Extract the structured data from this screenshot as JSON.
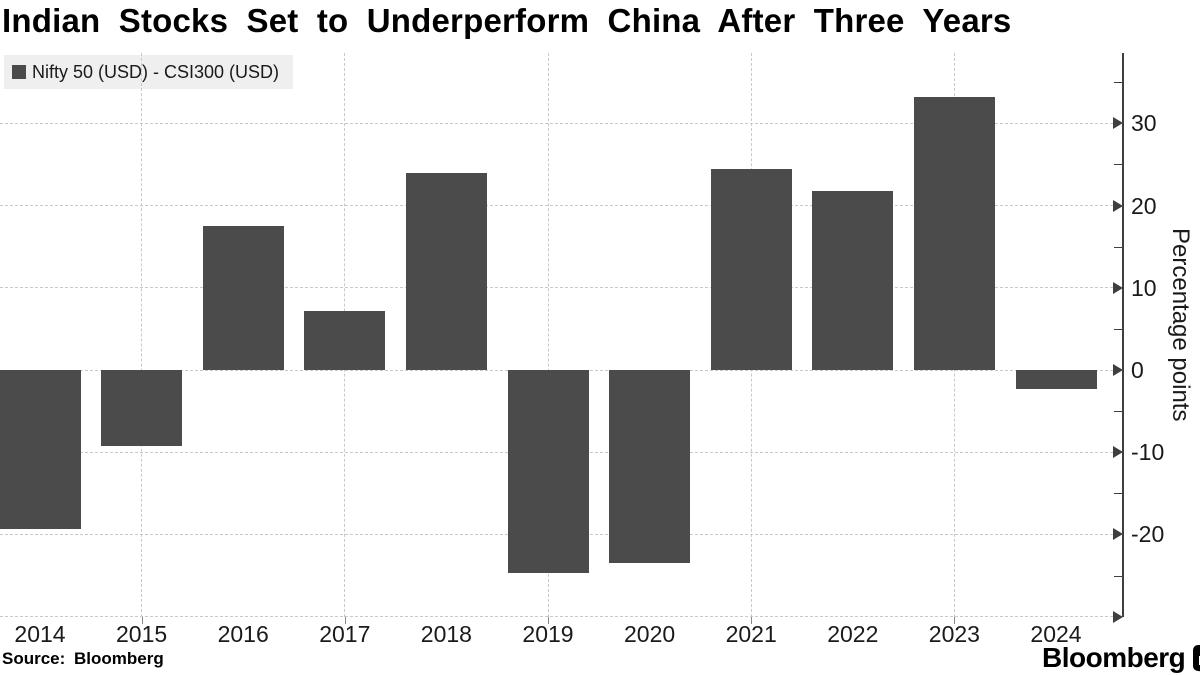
{
  "title": "Indian Stocks Set to Underperform China After Three Years",
  "legend": {
    "label": "Nifty 50 (USD) - CSI300 (USD)",
    "swatch_color": "#4b4b4b"
  },
  "footer": {
    "source": "Source: Bloomberg",
    "brand_wordmark": "Bloomberg",
    "brand_icon": "bloomberg-chart-icon"
  },
  "colors": {
    "bar": "#4b4b4b",
    "grid": "#c9c9c9",
    "axis": "#3f3f3f",
    "text": "#1a1a1a",
    "legend_bg": "#efefef"
  },
  "chart_data": {
    "type": "bar",
    "title": "Indian Stocks Set to Underperform China After Three Years",
    "series_name": "Nifty 50 (USD) - CSI300 (USD)",
    "categories": [
      "2014",
      "2015",
      "2016",
      "2017",
      "2018",
      "2019",
      "2020",
      "2021",
      "2022",
      "2023",
      "2024"
    ],
    "values": [
      -19.3,
      -9.3,
      17.5,
      7.2,
      23.9,
      -24.7,
      -23.5,
      24.4,
      21.8,
      33.2,
      -2.3
    ],
    "xlabel": "",
    "ylabel": "Percentage points",
    "y_ticks": [
      30,
      20,
      10,
      0,
      -10,
      -20
    ],
    "y_minor_ticks": [
      35,
      25,
      15,
      5,
      -5,
      -15,
      -25
    ],
    "ylim": [
      -30,
      38.5
    ],
    "axis_side": "right",
    "grid": "dashed horizontal every 10, dashed vertical at odd years",
    "grid_years": [
      "2015",
      "2017",
      "2019",
      "2021",
      "2023"
    ],
    "legend_position": "top-left"
  }
}
